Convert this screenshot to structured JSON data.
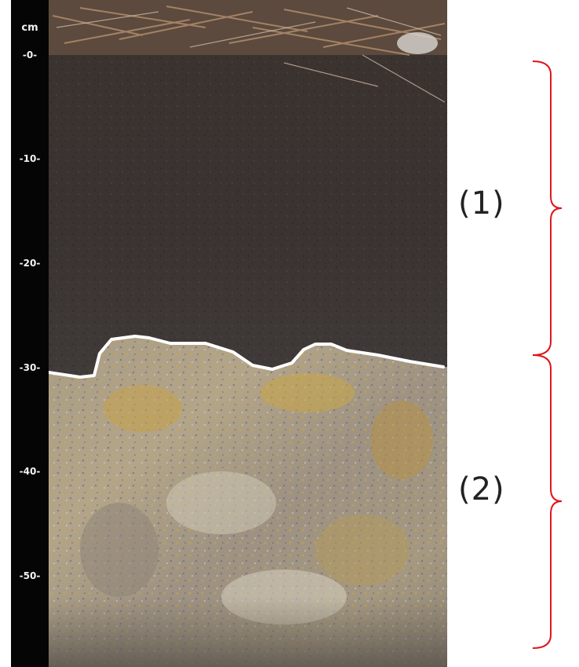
{
  "ruler": {
    "unit": "cm",
    "ticks": [
      "-0-",
      "-10-",
      "-20-",
      "-30-",
      "-40-",
      "-50-"
    ]
  },
  "labels": {
    "horizon_1": "(1)",
    "horizon_2": "(2)"
  },
  "colors": {
    "boundary_line": "#ffffff",
    "brace": "#e0161b",
    "ruler": "#050505"
  }
}
